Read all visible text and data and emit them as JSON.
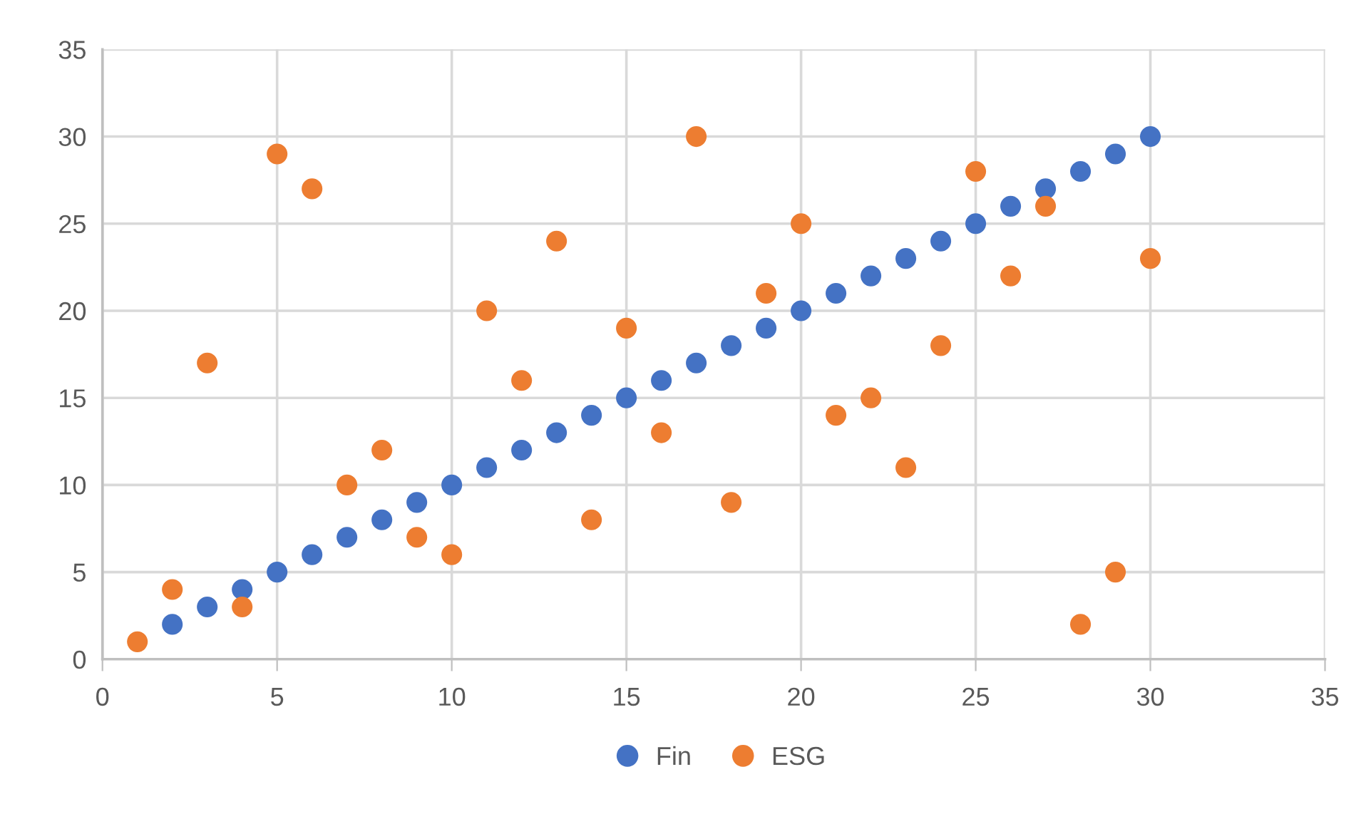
{
  "chart_data": {
    "type": "scatter",
    "x": [
      1,
      2,
      3,
      4,
      5,
      6,
      7,
      8,
      9,
      10,
      11,
      12,
      13,
      14,
      15,
      16,
      17,
      18,
      19,
      20,
      21,
      22,
      23,
      24,
      25,
      26,
      27,
      28,
      29,
      30
    ],
    "series": [
      {
        "name": "Fin",
        "color": "#4472c4",
        "values": [
          null,
          2,
          3,
          4,
          5,
          6,
          7,
          8,
          9,
          10,
          11,
          12,
          13,
          14,
          15,
          16,
          17,
          18,
          19,
          20,
          21,
          22,
          23,
          24,
          25,
          26,
          27,
          28,
          29,
          30
        ]
      },
      {
        "name": "ESG",
        "color": "#ed7d31",
        "values": [
          1,
          4,
          17,
          3,
          29,
          27,
          10,
          12,
          7,
          6,
          20,
          16,
          24,
          8,
          19,
          13,
          30,
          9,
          21,
          25,
          14,
          15,
          11,
          18,
          28,
          22,
          26,
          2,
          5,
          23
        ]
      }
    ],
    "xlim": [
      0,
      35
    ],
    "xticks": [
      0,
      5,
      10,
      15,
      20,
      25,
      30,
      35
    ],
    "ylim": [
      0,
      35
    ],
    "yticks": [
      0,
      5,
      10,
      15,
      20,
      25,
      30,
      35
    ],
    "grid": true,
    "marker": "circle",
    "legend": "bottom"
  }
}
